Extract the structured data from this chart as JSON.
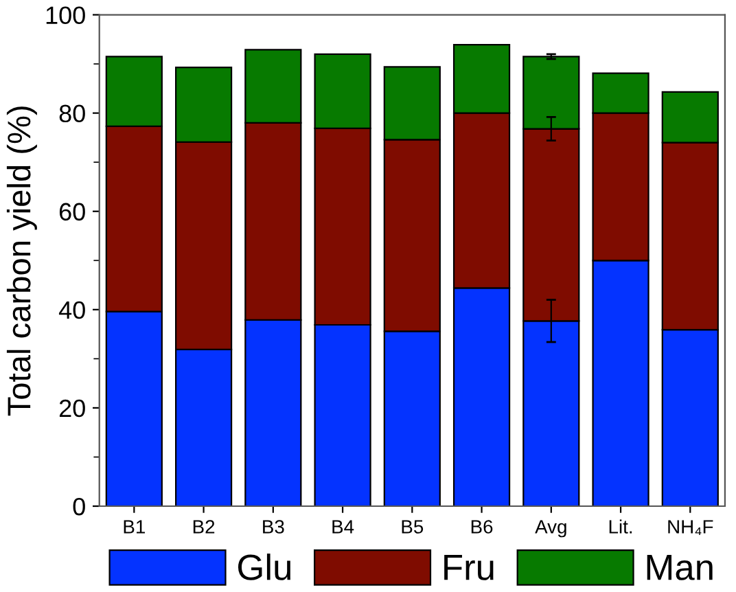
{
  "chart_data": {
    "type": "bar",
    "stacked": true,
    "ylabel": "Total carbon yield (%)",
    "categories": [
      "B1",
      "B2",
      "B3",
      "B4",
      "B5",
      "B6",
      "Avg",
      "Lit.",
      "NH₄F"
    ],
    "series": [
      {
        "name": "Glu",
        "color": "#0433ff",
        "values": [
          39.6,
          31.9,
          37.9,
          36.9,
          35.6,
          44.4,
          37.7,
          50.0,
          35.9
        ],
        "errors": [
          null,
          null,
          null,
          null,
          null,
          null,
          4.3,
          null,
          null
        ]
      },
      {
        "name": "Fru",
        "color": "#7f0c00",
        "values": [
          37.7,
          42.2,
          40.1,
          40.0,
          39.0,
          35.6,
          39.1,
          30.0,
          38.1
        ],
        "errors": [
          null,
          null,
          null,
          null,
          null,
          null,
          2.4,
          null,
          null
        ]
      },
      {
        "name": "Man",
        "color": "#077a00",
        "values": [
          14.2,
          15.2,
          14.9,
          15.1,
          14.8,
          13.9,
          14.7,
          8.1,
          10.3
        ],
        "errors": [
          null,
          null,
          null,
          null,
          null,
          null,
          0.5,
          null,
          null
        ]
      }
    ],
    "ylim": [
      0,
      100
    ],
    "yticks": [
      0,
      20,
      40,
      60,
      80,
      100
    ],
    "legend": "bottom"
  }
}
